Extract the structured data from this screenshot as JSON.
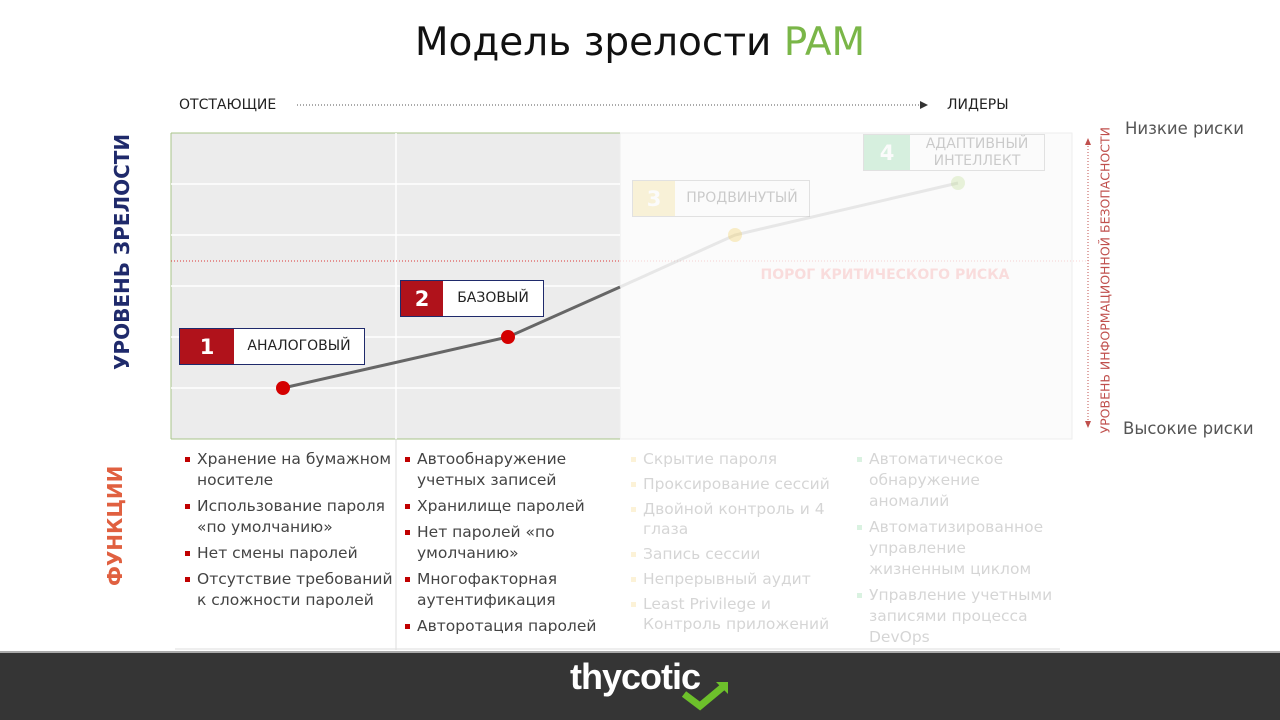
{
  "title": {
    "main": "Модель зрелости ",
    "accent": "PAM"
  },
  "colors": {
    "accent": "#7ab648",
    "stage_red": "#b0121b",
    "stage3": "#f2d15a",
    "stage4": "#59c87a",
    "navy": "#1f2a6b",
    "orange": "#e06040"
  },
  "top_axis": {
    "left": "ОТСТАЮЩИЕ",
    "right": "ЛИДЕРЫ"
  },
  "y_axis_label": "УРОВЕНЬ ЗРЕЛОСТИ",
  "functions_label": "ФУНКЦИИ",
  "right_axis": {
    "label": "УРОВЕНЬ ИНФОРМАЦИОННОЙ БЕЗОПАСНОСТИ",
    "top": "Низкие риски",
    "bottom": "Высокие риски"
  },
  "threshold_label": "ПОРОГ КРИТИЧЕСКОГО РИСКА",
  "stages": [
    {
      "number": "1",
      "name": "АНАЛОГОВЫЙ",
      "functions": [
        "Хранение на бумажном носителе",
        "Использование пароля «по умолчанию»",
        "Нет смены паролей",
        "Отсутствие требований к сложности паролей"
      ]
    },
    {
      "number": "2",
      "name": "БАЗОВЫЙ",
      "functions": [
        "Автообнаружение учетных записей",
        "Хранилище паролей",
        "Нет паролей «по умолчанию»",
        "Многофакторная аутентификация",
        "Авторотация паролей"
      ]
    },
    {
      "number": "3",
      "name": "ПРОДВИНУТЫЙ",
      "functions": [
        "Скрытие пароля",
        "Проксирование сессий",
        "Двойной контроль и 4 глаза",
        "Запись сессии",
        "Непрерывный аудит",
        "Least Privilege и Контроль приложений"
      ]
    },
    {
      "number": "4",
      "name": "АДАПТИВНЫЙ ИНТЕЛЛЕКТ",
      "functions": [
        "Автоматическое обнаружение аномалий",
        "Автоматизированное управление жизненным циклом",
        "Управление учетными записями процесса DevOps"
      ]
    }
  ],
  "footer": {
    "logo": "thycotic"
  }
}
